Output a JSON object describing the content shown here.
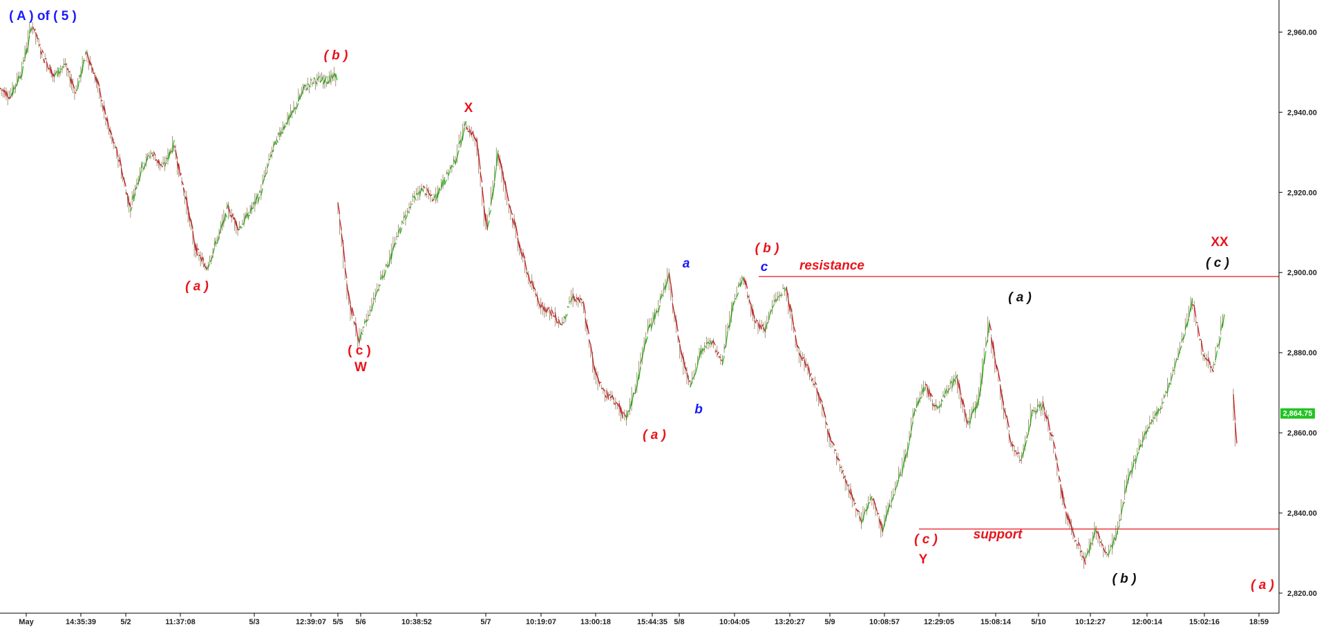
{
  "chart_data": {
    "type": "line",
    "xlabel": "",
    "ylabel": "",
    "ylim": [
      2815,
      2968
    ],
    "y_ticks": [
      "2,820.00",
      "2,840.00",
      "2,860.00",
      "2,880.00",
      "2,900.00",
      "2,920.00",
      "2,940.00",
      "2,960.00"
    ],
    "y_tick_values": [
      2820,
      2840,
      2860,
      2880,
      2900,
      2920,
      2940,
      2960
    ],
    "x_ticks": [
      "May",
      "14:35:39",
      "5/2",
      "11:37:08",
      "5/3",
      "12:39:07",
      "5/5",
      "5/6",
      "10:38:52",
      "5/7",
      "10:19:07",
      "13:00:18",
      "15:44:35",
      "5/8",
      "10:04:05",
      "13:20:27",
      "5/9",
      "10:08:57",
      "12:29:05",
      "15:08:14",
      "5/10",
      "10:12:27",
      "12:00:14",
      "15:02:16",
      "18:59"
    ],
    "last_price": "2,864.75",
    "series": [
      {
        "values": [
          2946,
          2944,
          2950,
          2962,
          2954,
          2949,
          2952,
          2945,
          2955,
          2947,
          2936,
          2928,
          2916,
          2926,
          2930,
          2926,
          2932,
          2920,
          2906,
          2901,
          2908,
          2916,
          2911,
          2915,
          2920,
          2930,
          2936,
          2940,
          2946,
          2948,
          2948,
          2949
        ]
      },
      {
        "values": [
          2918,
          2894,
          2883,
          2890,
          2898,
          2904,
          2912,
          2918,
          2921,
          2918,
          2923,
          2928,
          2937,
          2933,
          2910,
          2930,
          2918,
          2907,
          2898,
          2892,
          2890,
          2887,
          2894,
          2892,
          2876,
          2870,
          2868,
          2863,
          2872,
          2885,
          2891,
          2899,
          2882,
          2872,
          2880,
          2883,
          2878,
          2892,
          2899,
          2888,
          2886,
          2893,
          2896,
          2882,
          2876,
          2870,
          2860,
          2852,
          2845,
          2838,
          2844,
          2836,
          2844,
          2852,
          2865,
          2872,
          2866,
          2870,
          2874,
          2862,
          2868,
          2887,
          2872,
          2858,
          2853,
          2865,
          2867,
          2858,
          2842,
          2834,
          2828,
          2836,
          2829,
          2835,
          2848,
          2856,
          2862,
          2866,
          2873,
          2882,
          2893,
          2880,
          2876,
          2889
        ]
      },
      {
        "values": [
          2870,
          2857
        ]
      }
    ],
    "levels": [
      {
        "label": "resistance",
        "value": 2899
      },
      {
        "label": "support",
        "value": 2836
      }
    ],
    "annotations": [
      {
        "text": "( A )  of ( 5 )",
        "color": "#1a1aff",
        "upright": true
      },
      {
        "text": "( b )",
        "color": "#e8141c"
      },
      {
        "text": "( a )",
        "color": "#e8141c"
      },
      {
        "text": "( c )",
        "color": "#e8141c",
        "upright": true
      },
      {
        "text": "W",
        "color": "#e8141c",
        "upright": true
      },
      {
        "text": "X",
        "color": "#e8141c",
        "upright": true
      },
      {
        "text": "( a )",
        "color": "#e8141c"
      },
      {
        "text": "a",
        "color": "#1a1aff"
      },
      {
        "text": "b",
        "color": "#1a1aff"
      },
      {
        "text": "c",
        "color": "#1a1aff"
      },
      {
        "text": "( b )",
        "color": "#e8141c"
      },
      {
        "text": "resistance",
        "color": "#e8141c"
      },
      {
        "text": "( c )",
        "color": "#e8141c"
      },
      {
        "text": "Y",
        "color": "#e8141c",
        "upright": true
      },
      {
        "text": "support",
        "color": "#e8141c"
      },
      {
        "text": "( a )",
        "color": "#111111"
      },
      {
        "text": "( b )",
        "color": "#111111"
      },
      {
        "text": "XX",
        "color": "#e8141c",
        "upright": true
      },
      {
        "text": "( c )",
        "color": "#111111"
      },
      {
        "text": "( a )",
        "color": "#e8141c"
      }
    ],
    "colors": {
      "up": "#22c322",
      "down": "#d4142a",
      "level": "#e8141c",
      "badge": "#22c322"
    }
  }
}
